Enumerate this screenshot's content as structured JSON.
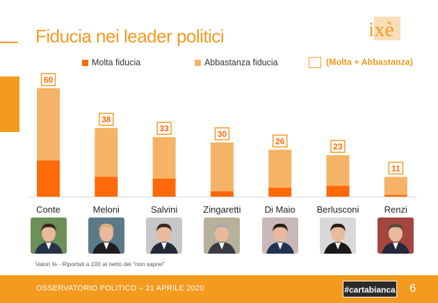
{
  "header": {
    "title": "Fiducia nei leader politici",
    "logo_text": "ixè"
  },
  "legend": {
    "molta": "Molta fiducia",
    "abbastanza": "Abbastanza fiducia",
    "totale": "(Molta + Abbastanza)"
  },
  "colors": {
    "accent": "#f39a1f",
    "molta": "#fe6a0a",
    "abbastanza": "#f4b366",
    "label_border": "#f39a1f"
  },
  "chart_data": {
    "type": "bar",
    "stacked": true,
    "title": "Fiducia nei leader politici",
    "categories": [
      "Conte",
      "Meloni",
      "Salvini",
      "Zingaretti",
      "Di Maio",
      "Berlusconi",
      "Renzi"
    ],
    "series": [
      {
        "name": "Molta fiducia",
        "values": [
          20,
          11,
          10,
          3,
          5,
          6,
          1
        ]
      },
      {
        "name": "Abbastanza fiducia",
        "values": [
          40,
          27,
          23,
          27,
          21,
          17,
          10
        ]
      }
    ],
    "totals_name": "(Molta + Abbastanza)",
    "totals": [
      60,
      38,
      33,
      30,
      26,
      23,
      11
    ],
    "ylim": [
      0,
      60
    ],
    "grid": false,
    "legend_position": "top"
  },
  "photos": [
    {
      "name": "Conte",
      "icon": "portrait-icon"
    },
    {
      "name": "Meloni",
      "icon": "portrait-icon"
    },
    {
      "name": "Salvini",
      "icon": "portrait-icon"
    },
    {
      "name": "Zingaretti",
      "icon": "portrait-icon"
    },
    {
      "name": "Di Maio",
      "icon": "portrait-icon"
    },
    {
      "name": "Berlusconi",
      "icon": "portrait-icon"
    },
    {
      "name": "Renzi",
      "icon": "portrait-icon"
    }
  ],
  "footnote": "Valori % - Riportati a 100 al netto dei \"non saprei\"",
  "footer": {
    "text": "OSSERVATORIO POLITICO – 21 APRILE 2020",
    "hashtag": "#cartabianca",
    "page": "6"
  }
}
